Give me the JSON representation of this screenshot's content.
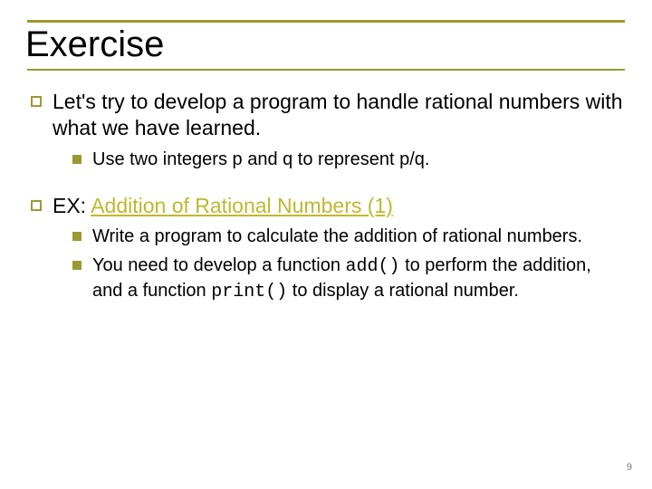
{
  "colors": {
    "accent": "#9a9a33",
    "link": "#c0b830",
    "text": "#000000",
    "page_num": "#7a7a7a"
  },
  "title": "Exercise",
  "page_number": "9",
  "items": [
    {
      "text": "Let's try to develop a program to handle rational numbers with what we have learned.",
      "children": [
        {
          "text": "Use two integers p and q to represent p/q."
        }
      ]
    },
    {
      "prefix": "EX: ",
      "link_text": "Addition of Rational Numbers (1)",
      "children": [
        {
          "text": "Write a program to calculate the addition of rational numbers."
        },
        {
          "pre1": "You need to develop a function ",
          "code1": "add()",
          "mid": " to perform the addition, and a function ",
          "code2": "print()",
          "post": " to display a rational number."
        }
      ]
    }
  ]
}
